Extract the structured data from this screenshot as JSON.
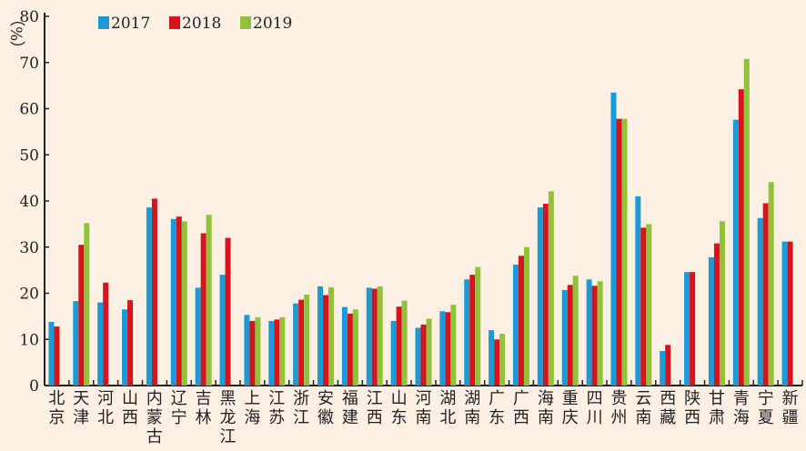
{
  "chart_data": {
    "type": "bar",
    "title": "",
    "xlabel": "",
    "ylabel": "（%）",
    "ylim": [
      0,
      80
    ],
    "yticks": [
      "0",
      "10",
      "20",
      "30",
      "40",
      "50",
      "60",
      "70",
      "80"
    ],
    "legend_position": "top-left",
    "categories": [
      "北京",
      "天津",
      "河北",
      "山西",
      "内蒙古",
      "辽宁",
      "吉林",
      "黑龙江",
      "上海",
      "江苏",
      "浙江",
      "安徽",
      "福建",
      "江西",
      "山东",
      "河南",
      "湖北",
      "湖南",
      "广东",
      "广西",
      "海南",
      "重庆",
      "四川",
      "贵州",
      "云南",
      "西藏",
      "陕西",
      "甘肃",
      "青海",
      "宁夏",
      "新疆"
    ],
    "series": [
      {
        "name": "2017",
        "color": "#1a9ad6",
        "values": [
          13.8,
          18.3,
          18,
          16.5,
          38.6,
          36.1,
          21.2,
          24,
          15.3,
          14,
          17.8,
          21.5,
          17,
          21.2,
          14,
          12.5,
          16.1,
          23,
          12,
          26.2,
          38.6,
          20.7,
          23,
          63.5,
          41,
          7.5,
          24.6,
          27.8,
          57.6,
          36.3,
          31.2
        ]
      },
      {
        "name": "2018",
        "color": "#d7141e",
        "values": [
          12.8,
          30.5,
          22.3,
          18.5,
          40.5,
          36.6,
          33,
          32,
          14,
          14.3,
          18.6,
          19.6,
          15.6,
          21,
          17.1,
          13.2,
          15.9,
          24,
          10,
          28.1,
          39.4,
          21.8,
          21.6,
          57.8,
          34.2,
          8.8,
          24.6,
          30.8,
          64.2,
          39.5,
          31.2
        ]
      },
      {
        "name": "2019",
        "color": "#92c13a",
        "values": [
          null,
          35.2,
          null,
          null,
          null,
          35.6,
          37,
          null,
          14.8,
          14.8,
          19.7,
          21.3,
          16.5,
          21.5,
          18.4,
          14.5,
          17.5,
          25.7,
          11.2,
          30,
          42.1,
          23.8,
          22.6,
          57.8,
          35,
          null,
          null,
          35.6,
          70.8,
          44.1,
          null
        ]
      }
    ]
  }
}
